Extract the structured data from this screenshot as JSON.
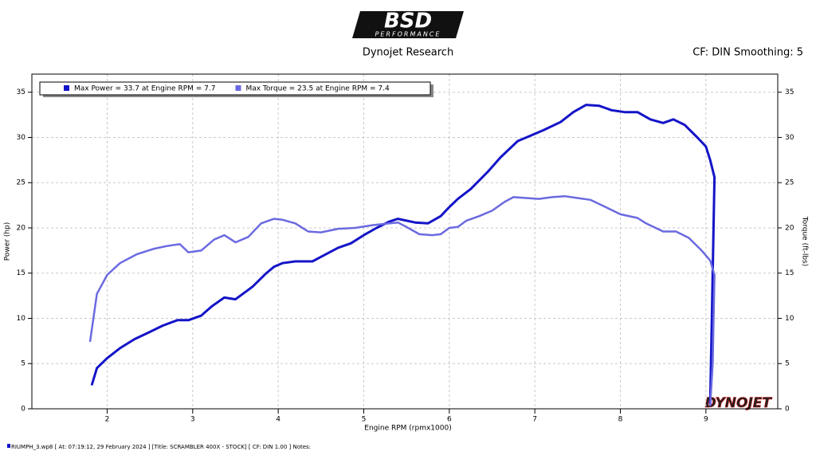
{
  "logo": {
    "brand": "BSD",
    "sub": "PERFORMANCE"
  },
  "chart_data": {
    "type": "line",
    "title": "Dynojet Research",
    "subtitle": "CF: DIN Smoothing: 5",
    "x_label": "Engine RPM (rpmx1000)",
    "y_label": "Power (hp)",
    "y2_label": "Torque (ft-lbs)",
    "xlim": [
      1.12,
      9.84
    ],
    "xticks": [
      2,
      3,
      4,
      5,
      6,
      7,
      8,
      9
    ],
    "ylim": [
      0,
      37
    ],
    "yticks": [
      0,
      5,
      10,
      15,
      20,
      25,
      30,
      35
    ],
    "y2lim": [
      0,
      37
    ],
    "y2ticks": [
      0,
      5,
      10,
      15,
      20,
      25,
      30,
      35
    ],
    "grid": true,
    "legend": "top-left",
    "series": [
      {
        "name": "Max Power = 33.7 at Engine RPM = 7.7",
        "color": "#1414c8",
        "x": [
          1.82,
          1.88,
          2.0,
          2.15,
          2.32,
          2.5,
          2.65,
          2.82,
          2.95,
          3.1,
          3.22,
          3.37,
          3.5,
          3.7,
          3.85,
          3.95,
          4.05,
          4.2,
          4.4,
          4.5,
          4.7,
          4.85,
          5.0,
          5.15,
          5.3,
          5.4,
          5.6,
          5.75,
          5.9,
          6.0,
          6.1,
          6.25,
          6.45,
          6.6,
          6.8,
          6.95,
          7.1,
          7.3,
          7.45,
          7.6,
          7.75,
          7.9,
          8.05,
          8.2,
          8.35,
          8.5,
          8.62,
          8.75,
          8.9,
          9.0,
          9.05,
          9.1,
          9.07,
          9.05
        ],
        "values": [
          2.6,
          4.5,
          5.6,
          6.7,
          7.7,
          8.5,
          9.2,
          9.8,
          9.8,
          10.3,
          11.3,
          12.3,
          12.1,
          13.5,
          14.9,
          15.7,
          16.1,
          16.3,
          16.3,
          16.8,
          17.8,
          18.3,
          19.2,
          20.0,
          20.7,
          21.0,
          20.6,
          20.5,
          21.3,
          22.3,
          23.2,
          24.3,
          26.2,
          27.8,
          29.6,
          30.2,
          30.8,
          31.7,
          32.8,
          33.6,
          33.5,
          33.0,
          32.8,
          32.8,
          32.0,
          31.6,
          32.0,
          31.4,
          30.0,
          29.0,
          27.5,
          25.6,
          10.0,
          0.5
        ]
      },
      {
        "name": "Max Torque = 23.5 at Engine RPM = 7.4",
        "color": "#6a6ae0",
        "axis": "y2",
        "x": [
          1.8,
          1.88,
          2.0,
          2.15,
          2.35,
          2.55,
          2.7,
          2.85,
          2.95,
          3.1,
          3.25,
          3.37,
          3.5,
          3.65,
          3.8,
          3.95,
          4.05,
          4.2,
          4.35,
          4.5,
          4.7,
          4.9,
          5.1,
          5.3,
          5.4,
          5.5,
          5.65,
          5.8,
          5.9,
          6.0,
          6.1,
          6.2,
          6.35,
          6.5,
          6.65,
          6.75,
          6.9,
          7.05,
          7.2,
          7.35,
          7.5,
          7.65,
          7.85,
          8.0,
          8.2,
          8.3,
          8.5,
          8.65,
          8.8,
          8.95,
          9.05,
          9.1,
          9.08,
          9.05
        ],
        "values": [
          7.4,
          12.7,
          14.8,
          16.1,
          17.1,
          17.7,
          18.0,
          18.2,
          17.3,
          17.5,
          18.7,
          19.2,
          18.4,
          19.0,
          20.5,
          21.0,
          20.9,
          20.5,
          19.6,
          19.5,
          19.9,
          20.0,
          20.3,
          20.5,
          20.6,
          20.1,
          19.3,
          19.2,
          19.3,
          20.0,
          20.1,
          20.8,
          21.3,
          21.9,
          22.9,
          23.4,
          23.3,
          23.2,
          23.4,
          23.5,
          23.3,
          23.1,
          22.2,
          21.5,
          21.1,
          20.5,
          19.6,
          19.6,
          18.9,
          17.5,
          16.4,
          14.8,
          5.0,
          0.3
        ]
      }
    ],
    "watermark": "DYNOJET",
    "footer": "RIUMPH_3.wp8 [ At: 07:19:12, 29 February 2024 ] [Title: SCRAMBLER 400X - STOCK] [ CF: DIN 1.00 ] Notes:"
  }
}
